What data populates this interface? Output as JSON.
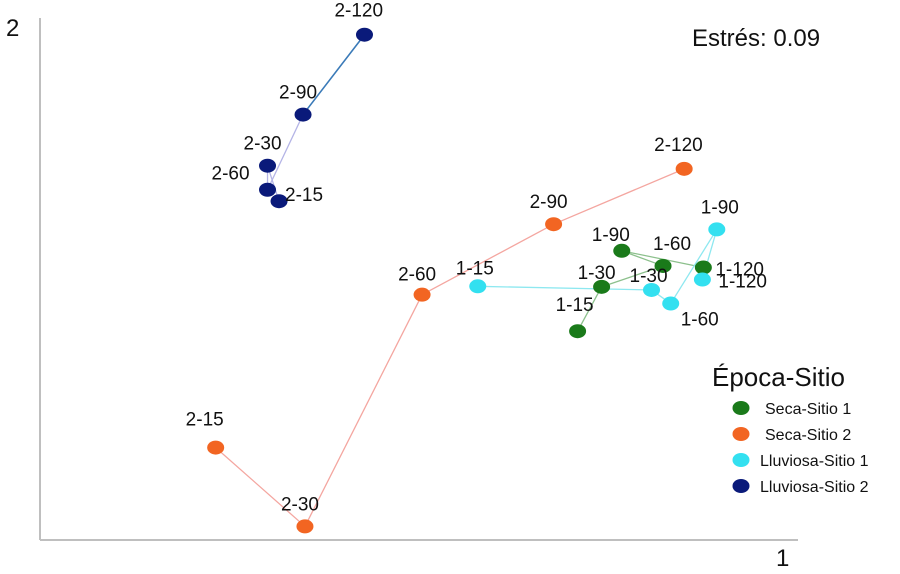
{
  "chart_data": {
    "type": "scatter",
    "x_axis_label": "1",
    "y_axis_label": "2",
    "stress_label": "Estrés: 0.09",
    "legend": {
      "title": "Época-Sitio",
      "placement": "right"
    },
    "series": [
      {
        "name": "Seca-Sitio 1",
        "color": "#1a7a1a",
        "line_color": "#8cc08c",
        "points": [
          {
            "label": "1-15",
            "x": 0.56,
            "y": 0.4
          },
          {
            "label": "1-30",
            "x": 0.585,
            "y": 0.485
          },
          {
            "label": "1-60",
            "x": 0.649,
            "y": 0.525
          },
          {
            "label": "1-90",
            "x": 0.606,
            "y": 0.554
          },
          {
            "label": "1-120",
            "x": 0.691,
            "y": 0.522
          }
        ]
      },
      {
        "name": "Seca-Sitio 2",
        "color": "#f26522",
        "line_color": "#f4a6a0",
        "points": [
          {
            "label": "2-15",
            "x": 0.183,
            "y": 0.177
          },
          {
            "label": "2-30",
            "x": 0.276,
            "y": 0.026
          },
          {
            "label": "2-60",
            "x": 0.398,
            "y": 0.47
          },
          {
            "label": "2-90",
            "x": 0.535,
            "y": 0.605
          },
          {
            "label": "2-120",
            "x": 0.671,
            "y": 0.711
          }
        ]
      },
      {
        "name": "Lluviosa-Sitio 1",
        "color": "#33e0f0",
        "line_color": "#8ee8f0",
        "points": [
          {
            "label": "1-15",
            "x": 0.456,
            "y": 0.486
          },
          {
            "label": "1-30",
            "x": 0.637,
            "y": 0.479
          },
          {
            "label": "1-60",
            "x": 0.657,
            "y": 0.453
          },
          {
            "label": "1-90",
            "x": 0.705,
            "y": 0.595
          },
          {
            "label": "1-120",
            "x": 0.69,
            "y": 0.499
          }
        ]
      },
      {
        "name": "Lluviosa-Sitio 2",
        "color": "#0a1a7a",
        "line_color": "#b4b4e6",
        "line_color_last": "#3a7ab8",
        "points": [
          {
            "label": "2-15",
            "x": 0.249,
            "y": 0.649
          },
          {
            "label": "2-30",
            "x": 0.237,
            "y": 0.717
          },
          {
            "label": "2-60",
            "x": 0.237,
            "y": 0.671
          },
          {
            "label": "2-90",
            "x": 0.274,
            "y": 0.815
          },
          {
            "label": "2-120",
            "x": 0.338,
            "y": 0.968
          }
        ]
      }
    ]
  }
}
